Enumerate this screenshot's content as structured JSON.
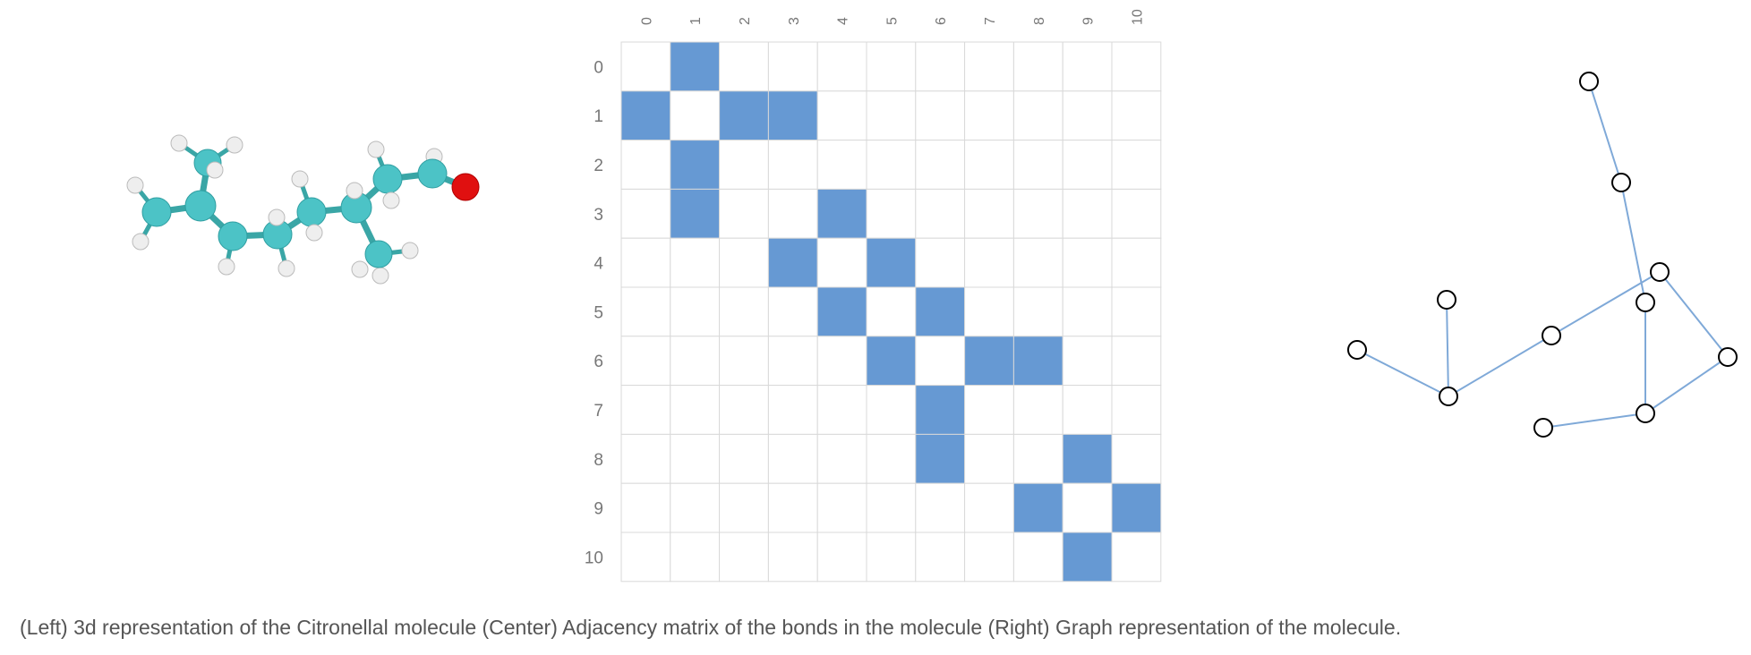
{
  "caption": "(Left) 3d representation of the Citronellal molecule (Center) Adjacency matrix of the bonds in the molecule (Right) Graph representation of the molecule.",
  "colors": {
    "carbon": "#4cc3c6",
    "bond": "#3aa6a6",
    "hydrogen": "#eeeeee",
    "oxygen": "#e01010",
    "matrix_fill": "#6699d3",
    "grid": "#d9d9d9",
    "axis_label": "#777777",
    "graph_edge": "#7fa9d8",
    "node_stroke": "#000000"
  },
  "matrix": {
    "row_labels": [
      "0",
      "1",
      "2",
      "3",
      "4",
      "5",
      "6",
      "7",
      "8",
      "9",
      "10"
    ],
    "col_labels": [
      "0",
      "1",
      "2",
      "3",
      "4",
      "5",
      "6",
      "7",
      "8",
      "9",
      "10"
    ],
    "bonds": [
      [
        0,
        1
      ],
      [
        1,
        2
      ],
      [
        1,
        3
      ],
      [
        3,
        4
      ],
      [
        4,
        5
      ],
      [
        5,
        6
      ],
      [
        6,
        7
      ],
      [
        6,
        8
      ],
      [
        8,
        9
      ],
      [
        9,
        10
      ]
    ]
  }
}
